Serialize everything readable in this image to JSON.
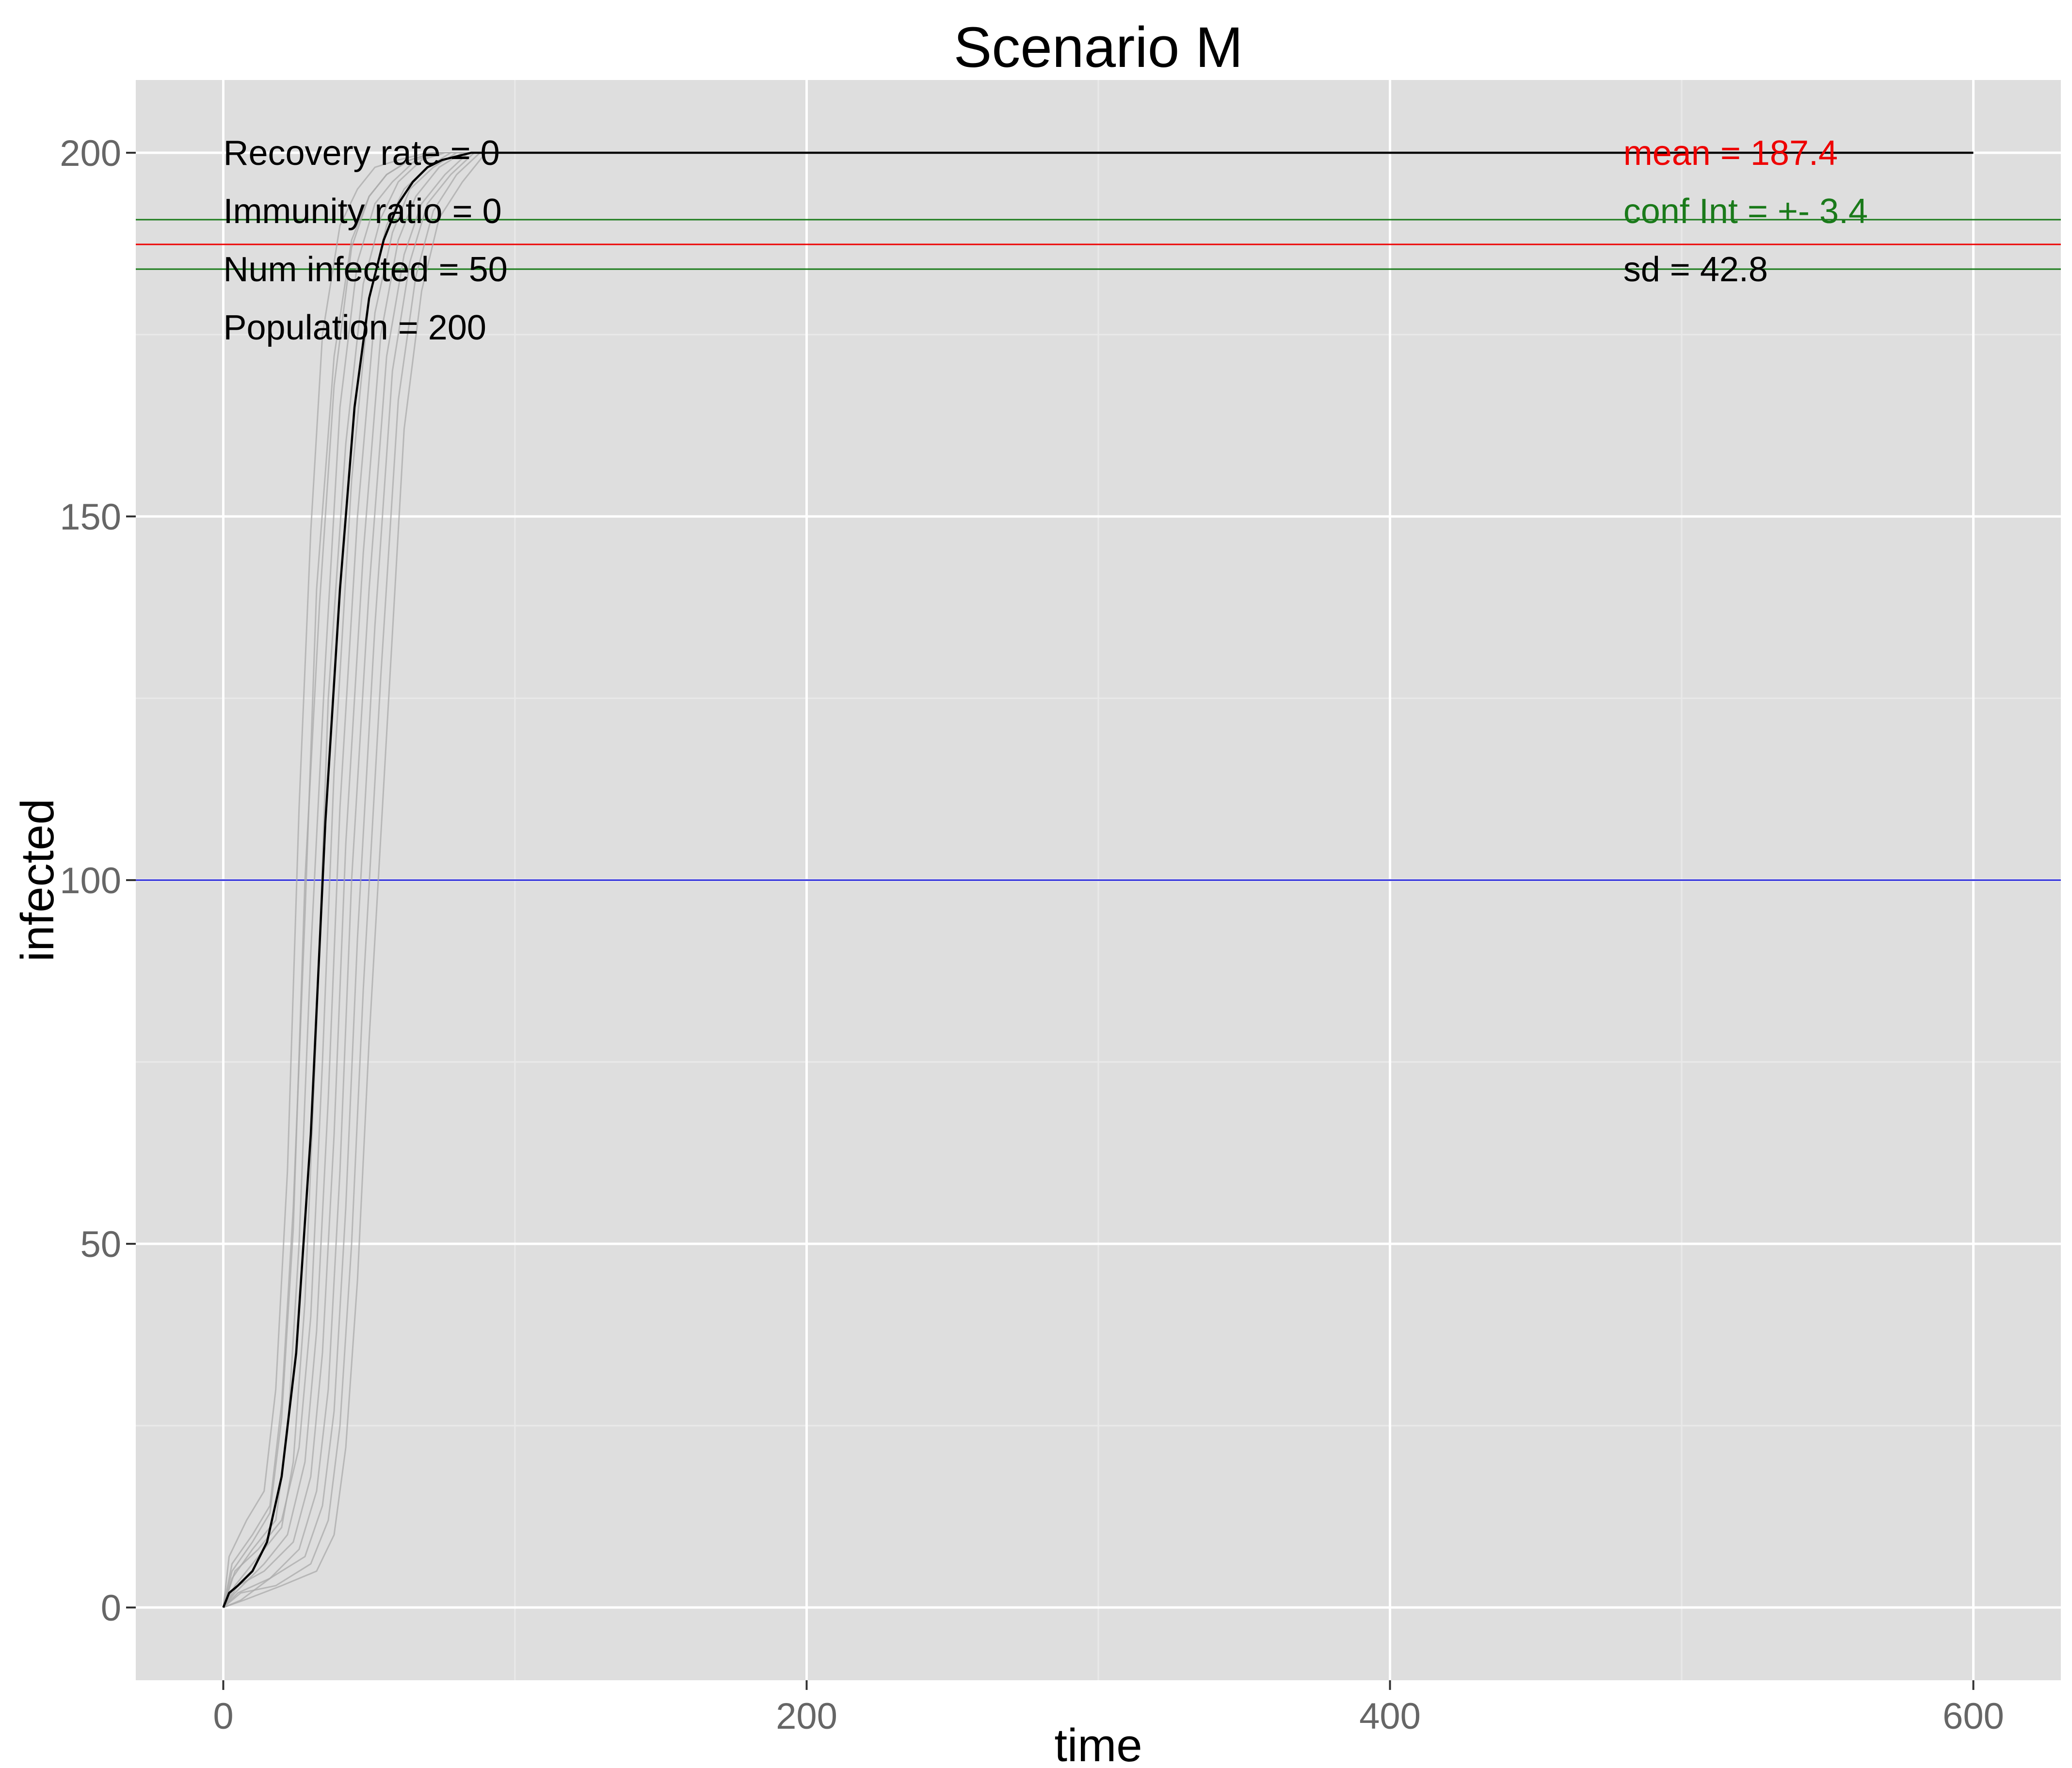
{
  "chart_data": {
    "type": "line",
    "title": "Scenario M",
    "xlabel": "time",
    "ylabel": "infected",
    "xlim": [
      -30,
      630
    ],
    "ylim": [
      -10,
      210
    ],
    "x_ticks": [
      0,
      200,
      400,
      600
    ],
    "y_ticks": [
      0,
      50,
      100,
      150,
      200
    ],
    "x_tick_labels": [
      "0",
      "200",
      "400",
      "600"
    ],
    "y_tick_labels": [
      "0",
      "50",
      "100",
      "150",
      "200"
    ],
    "grid": true,
    "background": "#dedede",
    "colors": {
      "runs": "#a9a9a9",
      "mean_curve": "#000000",
      "mean_line": "#ee0000",
      "conf_lines": "#1a7a1a",
      "threshold_line": "#1f1fd6",
      "grid_major": "#ffffff",
      "grid_minor": "#e9e9e9"
    },
    "series": [
      {
        "role": "run",
        "x": [
          0,
          3,
          10,
          16,
          20,
          24,
          28,
          32,
          38,
          44,
          50,
          56,
          64,
          72,
          90,
          100
        ],
        "y": [
          0,
          6,
          10,
          14,
          28,
          55,
          95,
          140,
          172,
          188,
          194,
          197,
          199,
          200,
          200,
          200
        ]
      },
      {
        "role": "run",
        "x": [
          0,
          3,
          10,
          18,
          22,
          26,
          30,
          35,
          40,
          46,
          52,
          58,
          66,
          74,
          92,
          102
        ],
        "y": [
          0,
          4,
          8,
          12,
          24,
          50,
          90,
          130,
          165,
          185,
          193,
          196,
          199,
          200,
          200,
          200
        ]
      },
      {
        "role": "run",
        "x": [
          0,
          4,
          12,
          20,
          24,
          28,
          32,
          36,
          42,
          48,
          54,
          60,
          68,
          76,
          94,
          105
        ],
        "y": [
          0,
          3,
          7,
          11,
          20,
          42,
          80,
          125,
          160,
          182,
          191,
          196,
          199,
          200,
          200,
          200
        ]
      },
      {
        "role": "run",
        "x": [
          0,
          4,
          12,
          20,
          26,
          30,
          34,
          38,
          44,
          50,
          56,
          62,
          70,
          78,
          96,
          108
        ],
        "y": [
          0,
          5,
          8,
          12,
          22,
          40,
          75,
          115,
          155,
          180,
          190,
          195,
          198,
          200,
          200,
          200
        ]
      },
      {
        "role": "run",
        "x": [
          0,
          4,
          14,
          22,
          28,
          32,
          36,
          40,
          46,
          52,
          58,
          64,
          72,
          80,
          98,
          110
        ],
        "y": [
          0,
          2,
          6,
          10,
          20,
          38,
          70,
          110,
          150,
          178,
          189,
          195,
          198,
          200,
          200,
          200
        ]
      },
      {
        "role": "run",
        "x": [
          0,
          5,
          14,
          24,
          30,
          34,
          38,
          42,
          48,
          54,
          60,
          66,
          74,
          82,
          100,
          112
        ],
        "y": [
          0,
          3,
          5,
          9,
          18,
          35,
          65,
          105,
          145,
          175,
          188,
          194,
          198,
          200,
          200,
          200
        ]
      },
      {
        "role": "run",
        "x": [
          0,
          5,
          16,
          26,
          32,
          36,
          40,
          44,
          50,
          56,
          62,
          68,
          76,
          84,
          102,
          115
        ],
        "y": [
          0,
          2,
          4,
          8,
          16,
          30,
          60,
          100,
          140,
          172,
          186,
          193,
          197,
          200,
          200,
          200
        ]
      },
      {
        "role": "run",
        "x": [
          0,
          6,
          16,
          28,
          34,
          38,
          42,
          46,
          52,
          58,
          64,
          70,
          78,
          86,
          104,
          118
        ],
        "y": [
          0,
          1,
          4,
          7,
          14,
          27,
          55,
          92,
          135,
          170,
          185,
          193,
          197,
          200,
          200,
          200
        ]
      },
      {
        "role": "run",
        "x": [
          0,
          6,
          18,
          30,
          36,
          40,
          44,
          48,
          54,
          60,
          66,
          72,
          80,
          88,
          106,
          120
        ],
        "y": [
          0,
          2,
          3,
          6,
          12,
          25,
          50,
          85,
          128,
          166,
          183,
          192,
          197,
          200,
          200,
          200
        ]
      },
      {
        "role": "run",
        "x": [
          0,
          7,
          20,
          32,
          38,
          42,
          46,
          50,
          56,
          62,
          68,
          74,
          82,
          90,
          108,
          122
        ],
        "y": [
          0,
          1,
          3,
          5,
          10,
          22,
          45,
          78,
          120,
          162,
          181,
          191,
          196,
          200,
          200,
          200
        ]
      },
      {
        "role": "run",
        "x": [
          0,
          2,
          8,
          14,
          18,
          22,
          26,
          30,
          34,
          40,
          46,
          52,
          60,
          70,
          88,
          98
        ],
        "y": [
          0,
          7,
          12,
          16,
          30,
          60,
          110,
          148,
          175,
          190,
          195,
          198,
          199,
          200,
          200,
          200
        ]
      },
      {
        "role": "run",
        "x": [
          0,
          3,
          10,
          16,
          20,
          24,
          28,
          33,
          38,
          44,
          50,
          56,
          64,
          72,
          90,
          100
        ],
        "y": [
          0,
          5,
          9,
          13,
          26,
          52,
          100,
          138,
          168,
          187,
          194,
          197,
          199,
          200,
          200,
          200
        ]
      },
      {
        "role": "mean",
        "x": [
          0,
          2,
          5,
          10,
          15,
          20,
          25,
          30,
          35,
          40,
          45,
          50,
          55,
          60,
          65,
          70,
          75,
          80,
          85,
          90,
          100,
          150,
          200,
          300,
          400,
          500,
          600
        ],
        "y": [
          0,
          2,
          3,
          5,
          9,
          18,
          35,
          65,
          108,
          140,
          165,
          180,
          188,
          193,
          196,
          198,
          199,
          199.5,
          200,
          200,
          200,
          200,
          200,
          200,
          200,
          200,
          200
        ]
      }
    ],
    "hlines": [
      {
        "role": "threshold",
        "y": 100
      },
      {
        "role": "mean",
        "y": 187.4
      },
      {
        "role": "conf-upper",
        "y": 190.8
      },
      {
        "role": "conf-lower",
        "y": 184.0
      }
    ],
    "annotations_left": [
      "Recovery rate = 0",
      "Immunity ratio = 0",
      "Num infected = 50",
      "Population = 200"
    ],
    "annotations_right": [
      {
        "text": "mean = 187.4",
        "color": "#ee0000"
      },
      {
        "text": "conf Int = +- 3.4",
        "color": "#1a7a1a"
      },
      {
        "text": "sd = 42.8",
        "color": "#000000"
      }
    ]
  }
}
